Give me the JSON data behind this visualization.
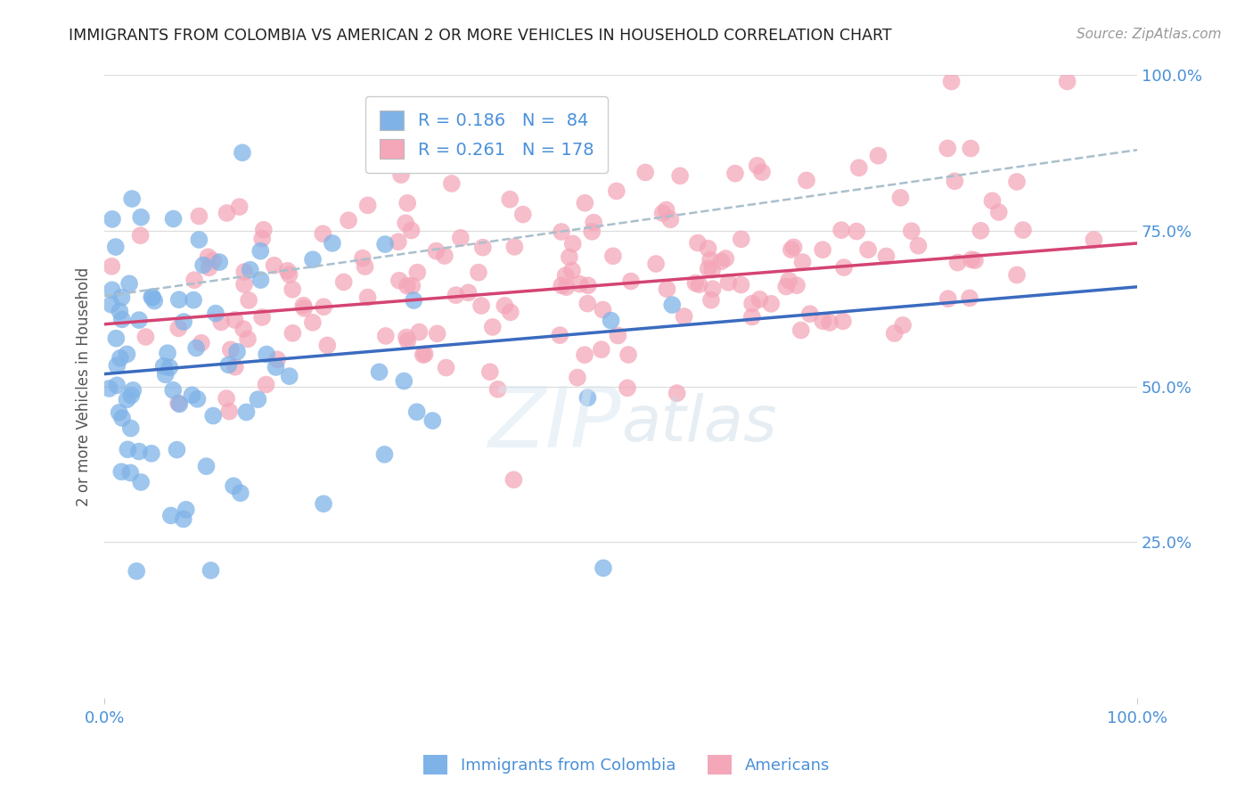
{
  "title": "IMMIGRANTS FROM COLOMBIA VS AMERICAN 2 OR MORE VEHICLES IN HOUSEHOLD CORRELATION CHART",
  "source": "Source: ZipAtlas.com",
  "ylabel": "2 or more Vehicles in Household",
  "xlim": [
    0.0,
    1.0
  ],
  "ylim": [
    0.0,
    1.0
  ],
  "legend1_label": "R = 0.186   N =  84",
  "legend2_label": "R = 0.261   N = 178",
  "blue_color": "#7fb3e8",
  "pink_color": "#f4a7b9",
  "blue_line_color": "#3a6bbf",
  "pink_line_color": "#d44472",
  "dashed_line_color": "#aabfcc",
  "title_color": "#222222",
  "label_color": "#4a90d9",
  "blue_N": 84,
  "pink_N": 178,
  "blue_intercept": 0.52,
  "blue_slope": 0.14,
  "pink_intercept": 0.6,
  "pink_slope": 0.13,
  "dashed_intercept": 0.645,
  "dashed_slope": 0.235,
  "seed": 99
}
